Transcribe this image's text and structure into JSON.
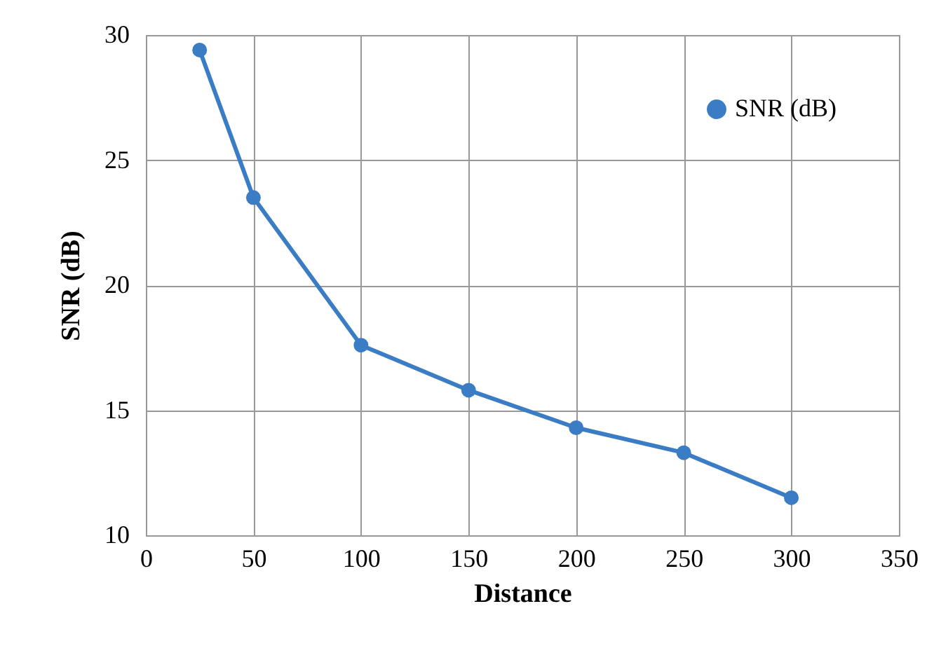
{
  "chart_data": {
    "type": "line",
    "xlabel": "Distance",
    "ylabel": "SNR (dB)",
    "x": [
      25,
      50,
      100,
      150,
      200,
      250,
      300
    ],
    "series": [
      {
        "name": "SNR (dB)",
        "color": "#3b7dc4",
        "values": [
          29.4,
          23.5,
          17.6,
          15.8,
          14.3,
          13.3,
          11.5
        ]
      }
    ],
    "xlim": [
      0,
      350
    ],
    "xticks": [
      0,
      50,
      100,
      150,
      200,
      250,
      300,
      350
    ],
    "ylim": [
      10,
      30
    ],
    "yticks": [
      10,
      15,
      20,
      25,
      30
    ],
    "grid": true,
    "legend": "top right",
    "marker": "circle",
    "line_style": "solid"
  }
}
